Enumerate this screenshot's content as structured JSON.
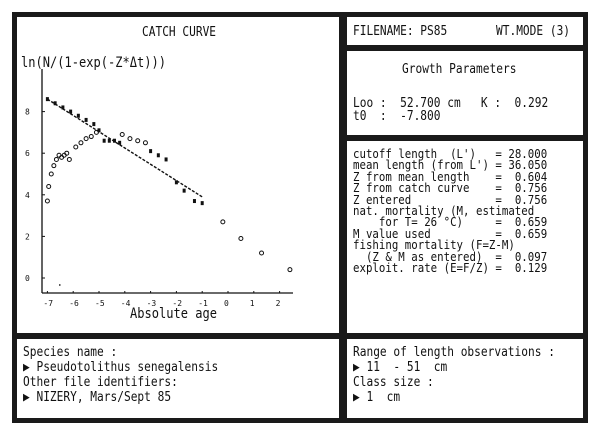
{
  "chart_panel": {
    "title": "CATCH CURVE",
    "ylabel": "ln(N/(1-exp(-Z*Δt)))",
    "xlabel": "Absolute age",
    "y_ticks": [
      "8",
      "6",
      "4",
      "2",
      "0"
    ],
    "x_ticks": [
      "-7",
      "-6",
      "-5",
      "-4",
      "-3",
      "-2",
      "-1",
      "0",
      "1",
      "2"
    ]
  },
  "header": {
    "filename_label": "FILENAME: PS85",
    "mode_label": "WT.MODE (3)"
  },
  "growth": {
    "title": "Growth Parameters",
    "line1": "Loo :  52.700 cm   K :  0.292",
    "line2": "t0  :  -7.800"
  },
  "stats": {
    "rows": [
      {
        "label": "cutoff length  (L')  ",
        "value": "= 28.000"
      },
      {
        "label": "mean length (from L')",
        "value": "= 36.050"
      },
      {
        "label": "Z from mean length   ",
        "value": "=  0.604"
      },
      {
        "label": "Z from catch curve   ",
        "value": "=  0.756"
      },
      {
        "label": "Z entered            ",
        "value": "=  0.756"
      },
      {
        "label": "nat. mortality (M, estimated",
        "value": ""
      },
      {
        "label": "    for T= 26 °C)    ",
        "value": "=  0.659"
      },
      {
        "label": "M value used         ",
        "value": "=  0.659"
      },
      {
        "label": "fishing mortality (F=Z-M)",
        "value": ""
      },
      {
        "label": "  (Z & M as entered) ",
        "value": "=  0.097"
      },
      {
        "label": "exploit. rate (E=F/Z)",
        "value": "=  0.129"
      }
    ]
  },
  "species": {
    "name_label": "Species name :",
    "name_value": "▶ Pseudotolithus senegalensis",
    "ident_label": "Other file identifiers:",
    "ident_value": "▶ NIZERY, Mars/Sept 85"
  },
  "range": {
    "label": "Range of length observations :",
    "value": "▶ 11  - 51  cm",
    "class_label": "Class size :",
    "class_value": "▶ 1  cm"
  },
  "chart_data": {
    "type": "scatter",
    "title": "CATCH CURVE",
    "xlabel": "Absolute age",
    "ylabel": "ln(N/(1-exp(-Z*Δt)))",
    "xlim": [
      -7.2,
      2.6
    ],
    "ylim": [
      -0.6,
      9.2
    ],
    "x_ticks": [
      -7,
      -6,
      -5,
      -4,
      -3,
      -2,
      -1,
      0,
      1,
      2
    ],
    "y_ticks": [
      0,
      2,
      4,
      6,
      8
    ],
    "grid": false,
    "regression_line": {
      "x": [
        -7.0,
        -1.0
      ],
      "y": [
        8.6,
        3.9
      ]
    },
    "points_unused": [
      {
        "x": -7.0,
        "y": 3.7
      },
      {
        "x": -6.95,
        "y": 4.4
      },
      {
        "x": -6.85,
        "y": 5.0
      },
      {
        "x": -6.75,
        "y": 5.4
      },
      {
        "x": -6.65,
        "y": 5.7
      },
      {
        "x": -6.55,
        "y": 5.9
      },
      {
        "x": -6.45,
        "y": 5.8
      },
      {
        "x": -6.35,
        "y": 5.9
      },
      {
        "x": -6.25,
        "y": 6.0
      },
      {
        "x": -6.15,
        "y": 5.7
      },
      {
        "x": -5.9,
        "y": 6.3
      },
      {
        "x": -5.7,
        "y": 6.5
      },
      {
        "x": -5.5,
        "y": 6.7
      },
      {
        "x": -5.3,
        "y": 6.8
      },
      {
        "x": -5.1,
        "y": 7.0
      },
      {
        "x": -4.1,
        "y": 6.9
      },
      {
        "x": -3.8,
        "y": 6.7
      },
      {
        "x": -3.5,
        "y": 6.6
      },
      {
        "x": -3.2,
        "y": 6.5
      },
      {
        "x": -0.2,
        "y": 2.7
      },
      {
        "x": 0.5,
        "y": 1.9
      },
      {
        "x": 1.3,
        "y": 1.2
      },
      {
        "x": 2.4,
        "y": 0.4
      }
    ],
    "points_used": [
      {
        "x": -7.0,
        "y": 8.6
      },
      {
        "x": -6.7,
        "y": 8.4
      },
      {
        "x": -6.4,
        "y": 8.2
      },
      {
        "x": -6.1,
        "y": 8.0
      },
      {
        "x": -5.8,
        "y": 7.8
      },
      {
        "x": -5.5,
        "y": 7.6
      },
      {
        "x": -5.2,
        "y": 7.4
      },
      {
        "x": -5.0,
        "y": 7.1
      },
      {
        "x": -4.8,
        "y": 6.6
      },
      {
        "x": -4.6,
        "y": 6.6
      },
      {
        "x": -4.4,
        "y": 6.6
      },
      {
        "x": -4.2,
        "y": 6.5
      },
      {
        "x": -3.0,
        "y": 6.1
      },
      {
        "x": -2.7,
        "y": 5.9
      },
      {
        "x": -2.4,
        "y": 5.7
      },
      {
        "x": -2.0,
        "y": 4.6
      },
      {
        "x": -1.7,
        "y": 4.2
      },
      {
        "x": -1.3,
        "y": 3.7
      },
      {
        "x": -1.0,
        "y": 3.6
      }
    ]
  }
}
